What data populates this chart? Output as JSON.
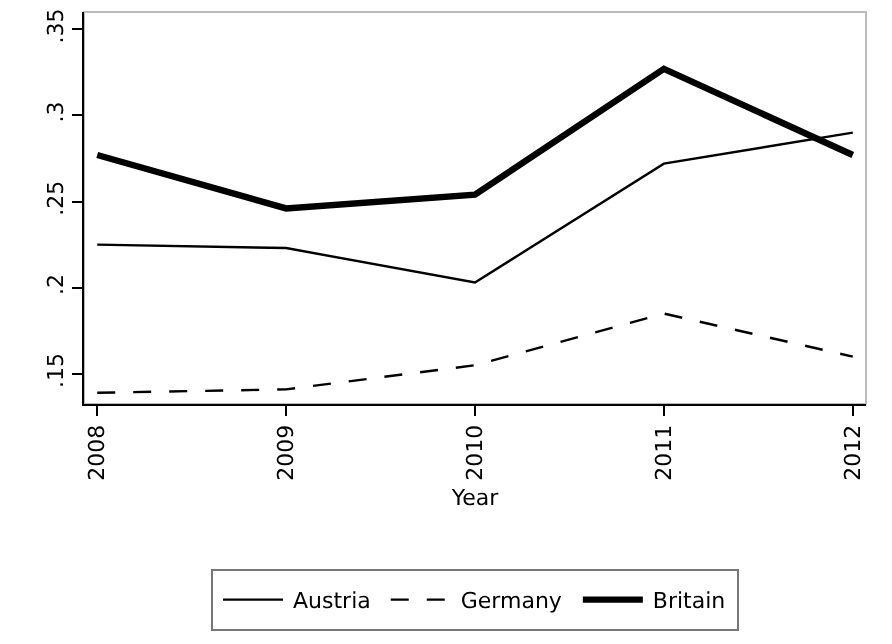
{
  "chart_data": {
    "type": "line",
    "xlabel": "Year",
    "x": [
      2008,
      2009,
      2010,
      2011,
      2012
    ],
    "xlim": [
      2007.93,
      2012.07
    ],
    "xticks": [
      2008,
      2009,
      2010,
      2011,
      2012
    ],
    "ylim": [
      0.1325,
      0.36
    ],
    "yticks": [
      {
        "value": 0.15,
        "label": ".15"
      },
      {
        "value": 0.2,
        "label": ".2"
      },
      {
        "value": 0.25,
        "label": ".25"
      },
      {
        "value": 0.3,
        "label": ".3"
      },
      {
        "value": 0.35,
        "label": ".35"
      }
    ],
    "series": [
      {
        "name": "Austria",
        "color": "#000000",
        "line_style": "solid",
        "values": [
          0.225,
          0.223,
          0.203,
          0.272,
          0.29
        ]
      },
      {
        "name": "Germany",
        "color": "#000000",
        "line_style": "dashed",
        "values": [
          0.139,
          0.141,
          0.155,
          0.185,
          0.16
        ]
      },
      {
        "name": "Britain",
        "color": "#000000",
        "line_style": "solid",
        "values": [
          0.277,
          0.246,
          0.254,
          0.327,
          0.277
        ]
      }
    ],
    "grid": false,
    "legend": "bottom",
    "marker": "none"
  }
}
